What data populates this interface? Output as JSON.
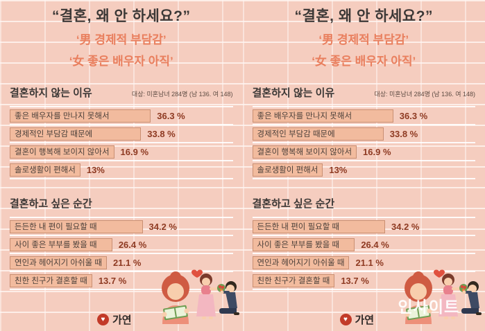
{
  "header": {
    "title": "“결혼, 왜 안 하세요?”",
    "subtitle_men": "‘男 경제적 부담감’",
    "subtitle_women": "‘女 좋은 배우자 아직’"
  },
  "survey_note": "대상: 미혼남녀 284명 (남 136. 여 148)",
  "footer": {
    "logo_text": "가연",
    "logo_glyph": "♥",
    "watermark": "인사이트"
  },
  "colors": {
    "wall_pink": "#f5cdbf",
    "accent_coral": "#e97f5e",
    "bar_fill": "#f2bb9e",
    "bar_border": "#c98f72",
    "percent_text": "#8e3a22",
    "watermark_text": "#ffffff"
  },
  "chart_data": [
    {
      "type": "bar",
      "orientation": "horizontal",
      "unit": "%",
      "title": "결혼하지 않는 이유",
      "note": "대상: 미혼남녀 284명 (남 136. 여 148)",
      "categories": [
        "좋은 배우자를 만나지 못해서",
        "경제적인 부담감 때문에",
        "결혼이 행복해 보이지 않아서",
        "솔로생활이 편해서"
      ],
      "values": [
        36.3,
        33.8,
        16.9,
        13
      ],
      "value_labels": [
        "36.3 %",
        "33.8 %",
        "16.9 %",
        "13%"
      ]
    },
    {
      "type": "bar",
      "orientation": "horizontal",
      "unit": "%",
      "title": "결혼하고 싶은 순간",
      "categories": [
        "든든한 내 편이 필요할 때",
        "사이 좋은 부부를 봤을 때",
        "연인과 헤어지기 아쉬울 때",
        "친한 친구가 결혼할 때"
      ],
      "values": [
        34.2,
        26.4,
        21.1,
        13.7
      ],
      "value_labels": [
        "34.2 %",
        "26.4 %",
        "21.1 %",
        "13.7 %"
      ]
    }
  ]
}
